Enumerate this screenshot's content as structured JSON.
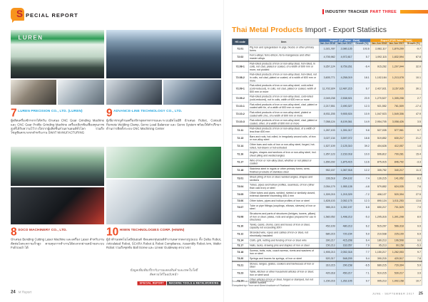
{
  "colors": {
    "accent_orange": "#f7941d",
    "banner_red": "#ed1c24",
    "import_blue": "#4e7fbe",
    "export_orange": "#f6a01a",
    "header_dark": "#3f5266",
    "heading_cyan": "#29a8df",
    "heading_red": "#c0392b",
    "number_orange": "#ee4b23"
  },
  "left_page": {
    "header": {
      "icon_letter": "S",
      "label": "PECIAL REPORT"
    },
    "photos": {
      "luren_sign": "LUREN"
    },
    "sections": [
      {
        "number": "7",
        "title": "LUREN PRECISION CO., LTD. (LUREN)",
        "body": "ผู้ผลิตเครื่องจักรจากไต้หวัน นำเสนอ CNC Gear Grinding Machine และ CNC Gear Profile Grinding Machine เครื่องเจียรฟันเฟืองคุณภาพสูงที่ได้รับความไว้วางใจจากผู้ผลิตชิ้นส่วนยานยนต์ทั่วโลก รวมถึงโซลูชันครบวงจรสำหรับงาน SWAT MANUFACTURING"
      },
      {
        "number": "9",
        "title": "ADVANCE-LINE TECHNOLOGY CO., LTD.",
        "body": "ผู้เชี่ยวชาญด้านเครื่องจักรอุตสาหกรรมและระบบอัตโนมัติ นำเสนอ Robot, Consult Remote Welding Clamp, Servo Load Balancer และ Servo System พร้อมให้คำปรึกษาด้านการติดตั้งระบบ CNC Machining Center"
      },
      {
        "number": "8",
        "title": "SOCO MACHINERY CO., LTD.",
        "body": "นำเสนอ Bending Cutting Laser Machine และเครื่อง Laser สำหรับงานตัดท่อโลหะความเร็วสูง ควบคุมการทำงานได้สะดวกผ่านหน้าจอระบบ Full touch ได้"
      },
      {
        "number": "10",
        "title": "HIWIN TECHNOLOGIES CORP. (HIWIN)",
        "body": "ผู้นำด้านเทคโนโลยีหุ่นยนต์ จัดแสดงหุ่นยนต์ทำงานหลากหลายรูปแบบ ทั้ง Delta Robot, Articulated Robot, SCARA Robot & Robot Compliance, Assembly Robot Arm, Wafer Robot รวมถึงชุดขับ Ball Screw และ Linear Guideway ครบวงจร"
      }
    ],
    "credit": {
      "line1": "ข้อมูลเพิ่มเติมเกี่ยวกับงานแสดงสินค้าและเทคโนโลยี",
      "line2": "ติดตามได้ในฉบับหน้า",
      "tags": [
        "SPECIAL REPORT",
        "MACHINE TOOLS & METALWORKING"
      ]
    },
    "footer": {
      "page_number": "24",
      "brand": "M Report"
    }
  },
  "right_page": {
    "banner": {
      "label": "INDUSTRY TRACKER",
      "part": "PART THREE"
    },
    "title": {
      "highlight": "Thai Metal Products",
      "rest": " Import - Export Statistics"
    },
    "footer": {
      "date": "JUNE - SEPTEMBER 2017",
      "page_number": "25"
    }
  },
  "table": {
    "headers": {
      "hs_code": "HS code",
      "item": "Item",
      "import_group": "Import (CIF Value : Baht)",
      "export_group": "Export (FOB Value : Baht)",
      "sub_2016": "Jan-Jun 2016",
      "sub_2017": "Jan-Jun 2017",
      "sub_growth": "Growth (%)"
    },
    "source": "Source : Thai Customs Department",
    "note": "Compiled by : Iron and Steel Institute of Thailand",
    "rows": [
      {
        "code": "72.01",
        "item": "Pig iron and spiegeleisen in pigs, blocks or other primary forms",
        "i16": "1,021,787",
        "i17": "2,080,135",
        "ig": "103.6",
        "e16": "2,082,117",
        "e17": "1,879,209",
        "eg": "-9.7"
      },
      {
        "code": "72.02",
        "item": "Ferro-alloys; ferro-silicon, ferro-manganese and other master alloys",
        "i16": "4,705,982",
        "i17": "4,972,817",
        "ig": "5.7",
        "e16": "1,092,115",
        "e17": "1,832,594",
        "eg": "67.8"
      },
      {
        "code": "72.08-1",
        "item": "Flat-rolled products of iron or non-alloy steel, hot-rolled, in coils, not clad, plated or coated, of a width of 600 mm or more, not pickled",
        "i16": "9,357,124",
        "i17": "8,759,261",
        "ig": "-6.4",
        "e16": "915,262",
        "e17": "1,207,944",
        "eg": "32.0",
        "group": true
      },
      {
        "code": "72.08-2",
        "item": "Flat-rolled products of iron or non-alloy steel, hot-rolled, not in coils, not clad, plated or coated, of a width of 600 mm or more",
        "i16": "3,605,771",
        "i17": "4,258,019",
        "ig": "18.1",
        "e16": "1,102,184",
        "e17": "1,213,078",
        "eg": "10.1"
      },
      {
        "code": "72.09-1",
        "item": "Flat-rolled products of iron or non-alloy steel, cold-rolled (cold-reduced), in coils, not clad, plated or coated, width of 600 mm or more",
        "i16": "11,702,924",
        "i17": "12,487,215",
        "ig": "6.7",
        "e16": "2,427,921",
        "e17": "3,157,935",
        "eg": "30.1"
      },
      {
        "code": "72.09-2",
        "item": "Flat-rolled products of iron or non-alloy steel, cold-rolled (cold-reduced), not in coils, width of 600 mm or more",
        "i16": "2,049,238",
        "i17": "2,538,921",
        "ig": "23.9",
        "e16": "1,270,527",
        "e17": "1,305,208",
        "eg": "2.7"
      },
      {
        "code": "72.10-1",
        "item": "Flat-rolled products of iron or non-alloy steel, clad, plated or coated with tin, of a width of 600 mm or more",
        "i16": "2,217,551",
        "i17": "2,490,327",
        "ig": "12.3",
        "e16": "921,552",
        "e17": "761,509",
        "eg": "-17.4"
      },
      {
        "code": "72.10-2",
        "item": "Flat-rolled products of iron or non-alloy steel, plated or coated with zinc, of a width of 600 mm or more",
        "i16": "8,931,205",
        "i17": "9,905,924",
        "ig": "10.9",
        "e16": "1,047,923",
        "e17": "1,549,306",
        "eg": "47.9"
      },
      {
        "code": "72.10-3",
        "item": "Flat-rolled products of iron or non-alloy steel, clad, plated or coated, other, of a width of 600 mm or more",
        "i16": "7,058,124",
        "i17": "8,109,361",
        "ig": "14.9",
        "e16": "2,954,705",
        "e17": "3,058,426",
        "eg": "3.5"
      },
      {
        "code": "72.11",
        "item": "Flat-rolled products of iron or non-alloy steel, of a width of less than 600 mm",
        "i16": "1,267,103",
        "i17": "1,391,017",
        "ig": "9.8",
        "e16": "527,035",
        "e17": "577,961",
        "eg": "9.7",
        "group": true
      },
      {
        "code": "72.13",
        "item": "Bars and rods, hot-rolled, in irregularly wound coils, of iron or non-alloy steel",
        "i16": "3,027,134",
        "i17": "3,597,072",
        "ig": "18.8",
        "e16": "519,852",
        "e17": "630,217",
        "eg": "21.2"
      },
      {
        "code": "72.14",
        "item": "Other bars and rods of iron or non-alloy steel, forged, hot-rolled, hot-drawn or hot-extruded",
        "i16": "1,527,109",
        "i17": "2,125,310",
        "ig": "39.2",
        "e16": "404,628",
        "e17": "412,057",
        "eg": "1.8"
      },
      {
        "code": "72.16",
        "item": "Angles, shapes and sections of iron or non-alloy steel, incl. sheet piling and welded angles",
        "i16": "1,957,123",
        "i17": "2,152,018",
        "ig": "10.0",
        "e16": "606,812",
        "e17": "700,281",
        "eg": "15.4"
      },
      {
        "code": "72.17",
        "item": "Wire of iron or non-alloy steel, whether or not plated or coated",
        "i16": "1,650,292",
        "i17": "1,875,415",
        "ig": "13.6",
        "e16": "875,915",
        "e17": "846,792",
        "eg": "-3.3"
      },
      {
        "code": "72.18",
        "item": "Stainless steel in ingots or other primary forms; semi-finished products of stainless steel",
        "i16": "952,157",
        "i17": "1,067,918",
        "ig": "12.2",
        "e16": "305,752",
        "e17": "340,217",
        "eg": "11.3",
        "group": true
      },
      {
        "code": "73.01",
        "item": "Sheet piling of iron or steel; welded angles, shapes and sections",
        "i16": "236,518",
        "i17": "254,102",
        "ig": "7.4",
        "e16": "130,215",
        "e17": "141,052",
        "eg": "8.3",
        "group": true
      },
      {
        "code": "73.04",
        "item": "Tubes, pipes and hollow profiles, seamless, of iron (other than cast iron) or steel",
        "i16": "2,054,179",
        "i17": "1,955,128",
        "ig": "-4.8",
        "e16": "579,852",
        "e17": "624,035",
        "eg": "7.6"
      },
      {
        "code": "73.05",
        "item": "Other tubes and pipes, welded, riveted or similarly closed, external diameter exceeding 406.4 mm",
        "i16": "1,309,215",
        "i17": "1,215,329",
        "ig": "-7.2",
        "e16": "408,127",
        "e17": "520,394",
        "eg": "27.5"
      },
      {
        "code": "73.06",
        "item": "Other tubes, pipes and hollow profiles of iron or steel",
        "i16": "1,828,103",
        "i17": "2,052,175",
        "ig": "12.3",
        "e16": "890,124",
        "e17": "1,011,253",
        "eg": "13.6"
      },
      {
        "code": "73.07",
        "item": "Tube or pipe fittings (couplings, elbows, sleeves) of iron or steel",
        "i16": "985,213",
        "i17": "1,052,197",
        "ig": "6.8",
        "e16": "650,217",
        "e17": "701,529",
        "eg": "7.9"
      },
      {
        "code": "73.08",
        "item": "Structures and parts of structures (bridges, towers, pillars) of iron or steel; plates, rods and angles prepared for use in structures",
        "i16": "1,582,052",
        "i17": "1,498,213",
        "ig": "-5.3",
        "e16": "1,205,316",
        "e17": "1,301,208",
        "eg": "8.0"
      },
      {
        "code": "73.10",
        "item": "Tanks, casks, drums, cans and boxes of iron or steel, capacity not exceeding 300 l",
        "i16": "452,109",
        "i17": "480,213",
        "ig": "6.2",
        "e16": "515,207",
        "e17": "566,318",
        "eg": "9.9"
      },
      {
        "code": "73.12",
        "item": "Stranded wire, ropes and cables of iron or steel, not electrically insulated",
        "i16": "680,215",
        "i17": "720,154",
        "ig": "5.9",
        "e16": "210,538",
        "e17": "225,109",
        "eg": "6.9"
      },
      {
        "code": "73.14",
        "item": "Cloth, grill, netting and fencing of iron or steel wire",
        "i16": "390,217",
        "i17": "415,208",
        "ig": "6.4",
        "e16": "180,213",
        "e17": "196,508",
        "eg": "9.0"
      },
      {
        "code": "73.17",
        "item": "Nails, tacks, drawing pins and staples of iron or steel",
        "i16": "150,213",
        "i17": "162,057",
        "ig": "7.9",
        "e16": "95,213",
        "e17": "90,158",
        "eg": "-5.3"
      },
      {
        "code": "73.18",
        "item": "Screws, bolts, nuts, coach screws, rivets and washers of iron or steel",
        "i16": "1,905,213",
        "i17": "2,052,318",
        "ig": "7.7",
        "e16": "1,150,217",
        "e17": "1,262,053",
        "eg": "9.7",
        "group": true
      },
      {
        "code": "73.20",
        "item": "Springs and leaves for springs, of iron or steel",
        "i16": "520,317",
        "i17": "548,209",
        "ig": "5.4",
        "e16": "390,215",
        "e17": "420,517",
        "eg": "7.8"
      },
      {
        "code": "73.21",
        "item": "Stoves, ranges, grates, cookers and barbecues of iron or steel",
        "i16": "310,215",
        "i17": "290,158",
        "ig": "-6.5",
        "e16": "680,215",
        "e17": "720,394",
        "eg": "5.9",
        "group": true
      },
      {
        "code": "73.23",
        "item": "Table, kitchen or other household articles of iron or steel; iron or steel wool",
        "i16": "420,318",
        "i17": "450,217",
        "ig": "7.1",
        "e16": "510,215",
        "e17": "530,217",
        "eg": "3.9"
      },
      {
        "code": "73.26",
        "item": "Other articles of iron or steel, forged or stamped, but not further worked",
        "i16": "1,150,216",
        "i17": "1,262,105",
        "ig": "9.7",
        "e16": "905,213",
        "e17": "1,002,158",
        "eg": "10.7"
      }
    ]
  }
}
